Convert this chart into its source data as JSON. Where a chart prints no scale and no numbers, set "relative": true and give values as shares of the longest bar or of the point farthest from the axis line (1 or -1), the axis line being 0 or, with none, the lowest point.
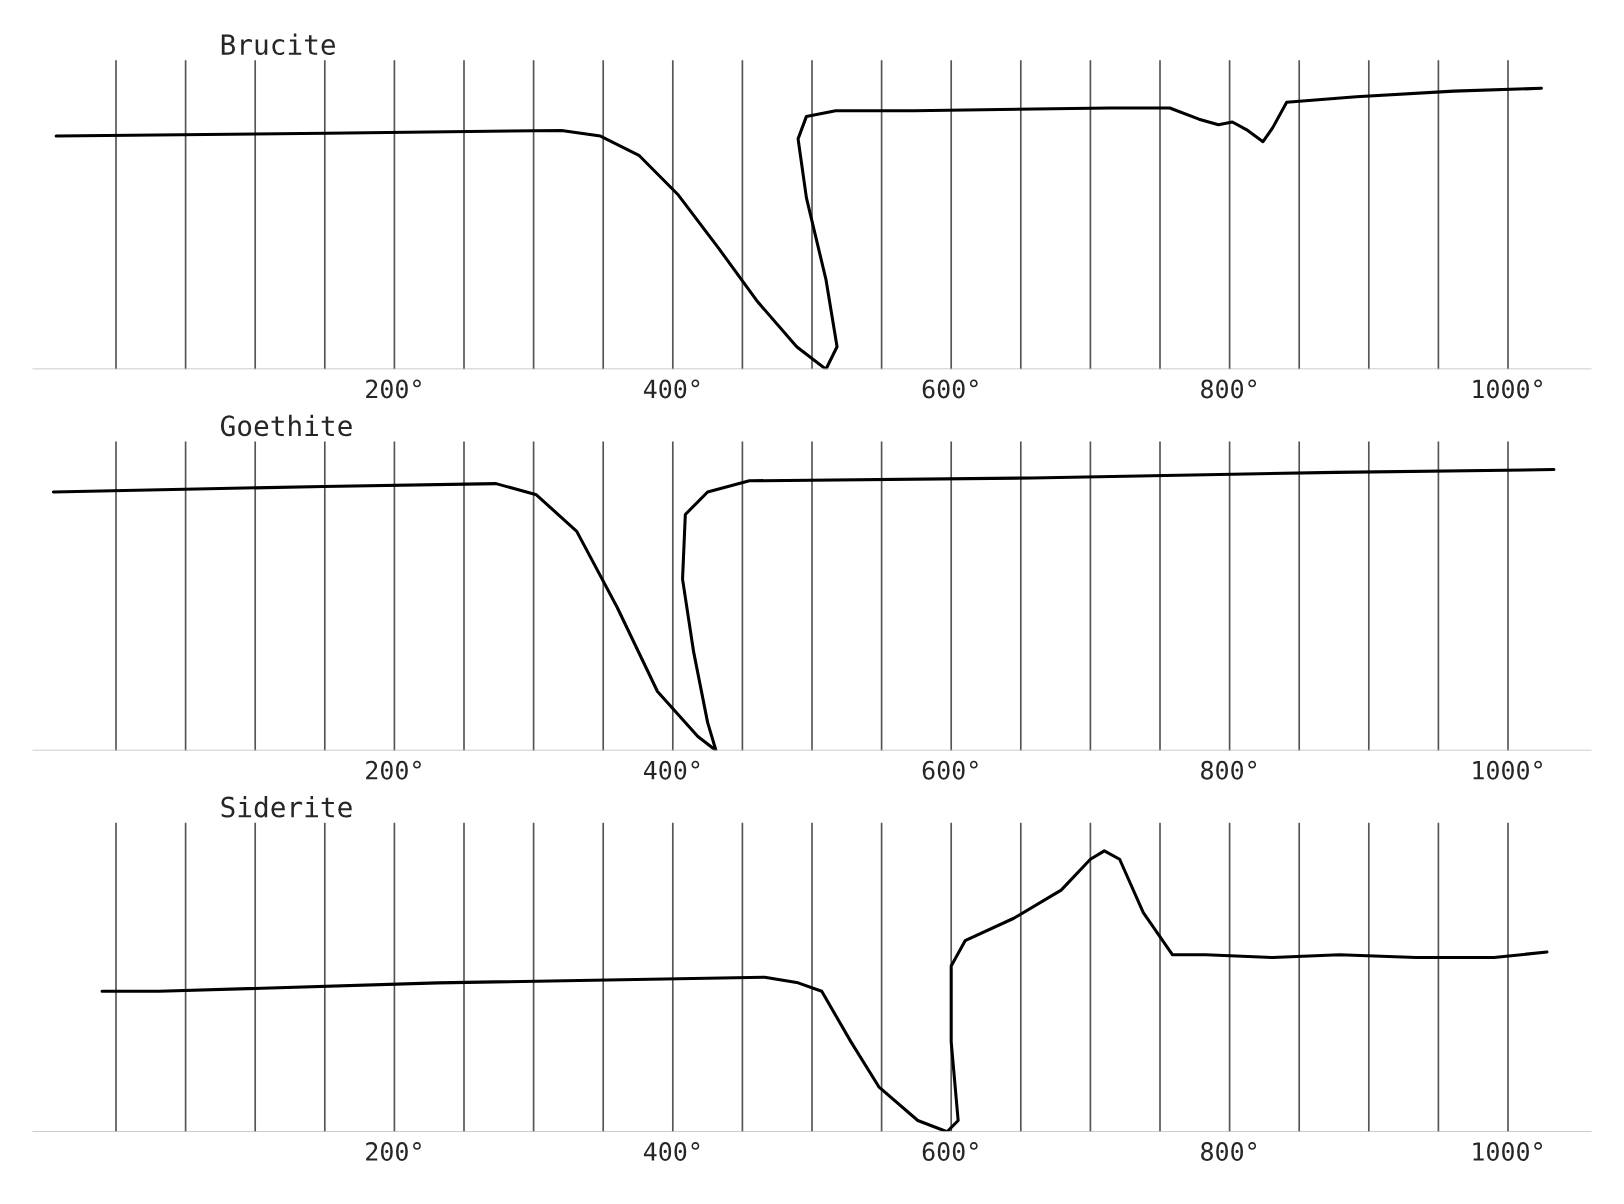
{
  "chart_data": [
    {
      "type": "line",
      "title": "Brucite",
      "relative": true,
      "grid": "x",
      "tick_labels": "x",
      "xlim": [
        -60,
        1060
      ],
      "xticks": [
        {
          "value": 0,
          "label": null
        },
        {
          "value": 50,
          "label": null
        },
        {
          "value": 100,
          "label": null
        },
        {
          "value": 150,
          "label": null
        },
        {
          "value": 200,
          "label": "200°"
        },
        {
          "value": 250,
          "label": null
        },
        {
          "value": 300,
          "label": null
        },
        {
          "value": 350,
          "label": null
        },
        {
          "value": 400,
          "label": "400°"
        },
        {
          "value": 450,
          "label": null
        },
        {
          "value": 500,
          "label": null
        },
        {
          "value": 550,
          "label": null
        },
        {
          "value": 600,
          "label": "600°"
        },
        {
          "value": 650,
          "label": null
        },
        {
          "value": 700,
          "label": null
        },
        {
          "value": 750,
          "label": null
        },
        {
          "value": 800,
          "label": "800°"
        },
        {
          "value": 850,
          "label": null
        },
        {
          "value": 900,
          "label": null
        },
        {
          "value": 950,
          "label": null
        },
        {
          "value": 1000,
          "label": "1000°"
        }
      ],
      "series": [
        {
          "color": "#000000",
          "x": [
            -43,
            151,
            320,
            348,
            376,
            404,
            433,
            461,
            489,
            510,
            518,
            510,
            496,
            490,
            496,
            517,
            573,
            714,
            757,
            778,
            792,
            802,
            813,
            824,
            831,
            841,
            891,
            961,
            1024
          ],
          "values": [
            0.83,
            0.84,
            0.85,
            0.83,
            0.76,
            0.62,
            0.43,
            0.24,
            0.08,
            0,
            0.08,
            0.32,
            0.61,
            0.82,
            0.9,
            0.92,
            0.92,
            0.93,
            0.93,
            0.89,
            0.87,
            0.88,
            0.85,
            0.81,
            0.86,
            0.95,
            0.97,
            0.99,
            1
          ]
        }
      ]
    },
    {
      "type": "line",
      "title": "Goethite",
      "relative": true,
      "grid": "x",
      "tick_labels": "x",
      "xlim": [
        -60,
        1060
      ],
      "xticks": [
        {
          "value": 0,
          "label": null
        },
        {
          "value": 50,
          "label": null
        },
        {
          "value": 100,
          "label": null
        },
        {
          "value": 150,
          "label": null
        },
        {
          "value": 200,
          "label": "200°"
        },
        {
          "value": 250,
          "label": null
        },
        {
          "value": 300,
          "label": null
        },
        {
          "value": 350,
          "label": null
        },
        {
          "value": 400,
          "label": "400°"
        },
        {
          "value": 450,
          "label": null
        },
        {
          "value": 500,
          "label": null
        },
        {
          "value": 550,
          "label": null
        },
        {
          "value": 600,
          "label": "600°"
        },
        {
          "value": 650,
          "label": null
        },
        {
          "value": 700,
          "label": null
        },
        {
          "value": 750,
          "label": null
        },
        {
          "value": 800,
          "label": "800°"
        },
        {
          "value": 850,
          "label": null
        },
        {
          "value": 900,
          "label": null
        },
        {
          "value": 950,
          "label": null
        },
        {
          "value": 1000,
          "label": "1000°"
        }
      ],
      "series": [
        {
          "color": "#000000",
          "x": [
            -45,
            149,
            273,
            302,
            331,
            360,
            389,
            418,
            431,
            425,
            415,
            407,
            409,
            425,
            455,
            658,
            876,
            1033
          ],
          "values": [
            0.92,
            0.94,
            0.95,
            0.91,
            0.78,
            0.51,
            0.21,
            0.05,
            0,
            0.1,
            0.35,
            0.61,
            0.84,
            0.92,
            0.96,
            0.97,
            0.99,
            1
          ]
        }
      ]
    },
    {
      "type": "line",
      "title": "Siderite",
      "relative": true,
      "grid": "x",
      "tick_labels": "x",
      "xlim": [
        -60,
        1060
      ],
      "xticks": [
        {
          "value": 0,
          "label": null
        },
        {
          "value": 50,
          "label": null
        },
        {
          "value": 100,
          "label": null
        },
        {
          "value": 150,
          "label": null
        },
        {
          "value": 200,
          "label": "200°"
        },
        {
          "value": 250,
          "label": null
        },
        {
          "value": 300,
          "label": null
        },
        {
          "value": 350,
          "label": null
        },
        {
          "value": 400,
          "label": "400°"
        },
        {
          "value": 450,
          "label": null
        },
        {
          "value": 500,
          "label": null
        },
        {
          "value": 550,
          "label": null
        },
        {
          "value": 600,
          "label": "600°"
        },
        {
          "value": 650,
          "label": null
        },
        {
          "value": 700,
          "label": null
        },
        {
          "value": 750,
          "label": null
        },
        {
          "value": 800,
          "label": "800°"
        },
        {
          "value": 850,
          "label": null
        },
        {
          "value": 900,
          "label": null
        },
        {
          "value": 950,
          "label": null
        },
        {
          "value": 1000,
          "label": "1000°"
        }
      ],
      "series": [
        {
          "color": "#000000",
          "x": [
            -10,
            31,
            231,
            466,
            490,
            507,
            528,
            548,
            576,
            597,
            605,
            600,
            600,
            610,
            645,
            679,
            700,
            710,
            721,
            738,
            759,
            783,
            831,
            879,
            934,
            990,
            1028
          ],
          "values": [
            0.5,
            0.5,
            0.53,
            0.55,
            0.53,
            0.5,
            0.32,
            0.16,
            0.04,
            0,
            0.04,
            0.32,
            0.59,
            0.68,
            0.76,
            0.86,
            0.97,
            1,
            0.97,
            0.78,
            0.63,
            0.63,
            0.62,
            0.63,
            0.62,
            0.62,
            0.64
          ]
        }
      ]
    }
  ]
}
